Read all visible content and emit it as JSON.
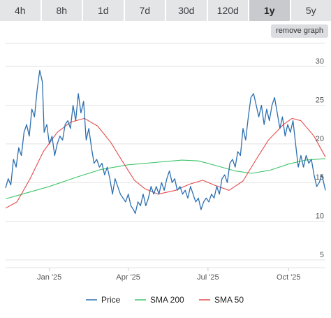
{
  "tabs": [
    {
      "label": "4h",
      "active": false
    },
    {
      "label": "8h",
      "active": false
    },
    {
      "label": "1d",
      "active": false
    },
    {
      "label": "7d",
      "active": false
    },
    {
      "label": "30d",
      "active": false
    },
    {
      "label": "120d",
      "active": false
    },
    {
      "label": "1y",
      "active": true
    },
    {
      "label": "5y",
      "active": false
    }
  ],
  "remove_graph_label": "remove graph",
  "chart_data": {
    "type": "line",
    "title": "",
    "xlabel": "",
    "ylabel": "",
    "ylim": [
      4,
      33
    ],
    "yticks": [
      5,
      10,
      15,
      20,
      25,
      30
    ],
    "xlim": [
      "2024-11-12",
      "2025-11-12"
    ],
    "xticks": [
      {
        "date": "2025-01-01",
        "label": "Jan '25"
      },
      {
        "date": "2025-04-01",
        "label": "Apr '25"
      },
      {
        "date": "2025-07-01",
        "label": "Jul '25"
      },
      {
        "date": "2025-10-01",
        "label": "Oct '25"
      }
    ],
    "grid": true,
    "legend": "bottom",
    "series": [
      {
        "name": "Price",
        "color": "#2c6fb0",
        "points": [
          [
            "2024-11-12",
            14.3
          ],
          [
            "2024-11-15",
            15.5
          ],
          [
            "2024-11-18",
            14.7
          ],
          [
            "2024-11-21",
            18.0
          ],
          [
            "2024-11-24",
            17.0
          ],
          [
            "2024-11-27",
            19.5
          ],
          [
            "2024-11-30",
            18.5
          ],
          [
            "2024-12-03",
            21.5
          ],
          [
            "2024-12-06",
            22.5
          ],
          [
            "2024-12-09",
            21.0
          ],
          [
            "2024-12-12",
            24.5
          ],
          [
            "2024-12-15",
            23.5
          ],
          [
            "2024-12-18",
            27.0
          ],
          [
            "2024-12-21",
            29.5
          ],
          [
            "2024-12-24",
            28.0
          ],
          [
            "2024-12-26",
            21.5
          ],
          [
            "2024-12-29",
            22.5
          ],
          [
            "2025-01-01",
            20.0
          ],
          [
            "2025-01-04",
            21.0
          ],
          [
            "2025-01-07",
            18.5
          ],
          [
            "2025-01-10",
            20.0
          ],
          [
            "2025-01-13",
            21.0
          ],
          [
            "2025-01-16",
            20.5
          ],
          [
            "2025-01-19",
            22.5
          ],
          [
            "2025-01-22",
            23.0
          ],
          [
            "2025-01-25",
            22.0
          ],
          [
            "2025-01-28",
            25.0
          ],
          [
            "2025-01-31",
            23.0
          ],
          [
            "2025-02-03",
            26.5
          ],
          [
            "2025-02-06",
            24.0
          ],
          [
            "2025-02-09",
            25.5
          ],
          [
            "2025-02-12",
            20.5
          ],
          [
            "2025-02-15",
            22.0
          ],
          [
            "2025-02-18",
            19.5
          ],
          [
            "2025-02-21",
            17.5
          ],
          [
            "2025-02-24",
            18.0
          ],
          [
            "2025-02-27",
            17.0
          ],
          [
            "2025-03-02",
            17.5
          ],
          [
            "2025-03-05",
            16.0
          ],
          [
            "2025-03-08",
            17.0
          ],
          [
            "2025-03-11",
            15.5
          ],
          [
            "2025-03-14",
            13.5
          ],
          [
            "2025-03-17",
            15.5
          ],
          [
            "2025-03-20",
            14.5
          ],
          [
            "2025-03-23",
            13.5
          ],
          [
            "2025-03-26",
            13.0
          ],
          [
            "2025-03-29",
            12.5
          ],
          [
            "2025-04-01",
            13.5
          ],
          [
            "2025-04-04",
            12.0
          ],
          [
            "2025-04-07",
            11.5
          ],
          [
            "2025-04-09",
            11.0
          ],
          [
            "2025-04-12",
            12.5
          ],
          [
            "2025-04-15",
            12.0
          ],
          [
            "2025-04-18",
            13.5
          ],
          [
            "2025-04-21",
            12.0
          ],
          [
            "2025-04-24",
            13.0
          ],
          [
            "2025-04-27",
            14.5
          ],
          [
            "2025-04-30",
            13.5
          ],
          [
            "2025-05-03",
            14.5
          ],
          [
            "2025-05-06",
            13.5
          ],
          [
            "2025-05-09",
            15.0
          ],
          [
            "2025-05-12",
            14.0
          ],
          [
            "2025-05-15",
            15.5
          ],
          [
            "2025-05-18",
            16.5
          ],
          [
            "2025-05-21",
            15.0
          ],
          [
            "2025-05-24",
            15.5
          ],
          [
            "2025-05-27",
            14.0
          ],
          [
            "2025-05-30",
            14.5
          ],
          [
            "2025-06-02",
            13.5
          ],
          [
            "2025-06-05",
            14.0
          ],
          [
            "2025-06-08",
            13.0
          ],
          [
            "2025-06-11",
            14.5
          ],
          [
            "2025-06-14",
            13.5
          ],
          [
            "2025-06-17",
            12.5
          ],
          [
            "2025-06-20",
            13.0
          ],
          [
            "2025-06-23",
            11.5
          ],
          [
            "2025-06-26",
            12.5
          ],
          [
            "2025-06-29",
            13.0
          ],
          [
            "2025-07-02",
            12.5
          ],
          [
            "2025-07-05",
            13.5
          ],
          [
            "2025-07-08",
            13.0
          ],
          [
            "2025-07-11",
            14.5
          ],
          [
            "2025-07-14",
            13.5
          ],
          [
            "2025-07-17",
            15.5
          ],
          [
            "2025-07-20",
            16.0
          ],
          [
            "2025-07-23",
            15.0
          ],
          [
            "2025-07-26",
            17.5
          ],
          [
            "2025-07-29",
            18.0
          ],
          [
            "2025-08-01",
            17.0
          ],
          [
            "2025-08-04",
            19.0
          ],
          [
            "2025-08-07",
            18.5
          ],
          [
            "2025-08-10",
            22.0
          ],
          [
            "2025-08-13",
            20.5
          ],
          [
            "2025-08-16",
            23.5
          ],
          [
            "2025-08-19",
            26.0
          ],
          [
            "2025-08-22",
            26.5
          ],
          [
            "2025-08-25",
            25.0
          ],
          [
            "2025-08-28",
            23.5
          ],
          [
            "2025-08-31",
            25.0
          ],
          [
            "2025-09-03",
            22.5
          ],
          [
            "2025-09-06",
            24.5
          ],
          [
            "2025-09-09",
            23.0
          ],
          [
            "2025-09-12",
            25.0
          ],
          [
            "2025-09-15",
            26.0
          ],
          [
            "2025-09-18",
            24.0
          ],
          [
            "2025-09-21",
            22.0
          ],
          [
            "2025-09-24",
            23.5
          ],
          [
            "2025-09-27",
            21.0
          ],
          [
            "2025-09-30",
            22.5
          ],
          [
            "2025-10-03",
            21.5
          ],
          [
            "2025-10-06",
            23.0
          ],
          [
            "2025-10-09",
            20.0
          ],
          [
            "2025-10-12",
            17.0
          ],
          [
            "2025-10-15",
            18.5
          ],
          [
            "2025-10-18",
            17.0
          ],
          [
            "2025-10-21",
            18.5
          ],
          [
            "2025-10-24",
            17.5
          ],
          [
            "2025-10-27",
            18.0
          ],
          [
            "2025-10-30",
            16.0
          ],
          [
            "2025-11-02",
            14.5
          ],
          [
            "2025-11-05",
            15.0
          ],
          [
            "2025-11-08",
            16.0
          ],
          [
            "2025-11-12",
            14.0
          ]
        ]
      },
      {
        "name": "SMA 200",
        "color": "#3ec46a",
        "points": [
          [
            "2024-11-12",
            12.9
          ],
          [
            "2024-12-01",
            13.5
          ],
          [
            "2025-01-01",
            14.5
          ],
          [
            "2025-02-01",
            15.7
          ],
          [
            "2025-03-01",
            16.7
          ],
          [
            "2025-04-01",
            17.3
          ],
          [
            "2025-05-01",
            17.6
          ],
          [
            "2025-06-01",
            17.9
          ],
          [
            "2025-06-20",
            17.8
          ],
          [
            "2025-07-10",
            17.2
          ],
          [
            "2025-08-01",
            16.5
          ],
          [
            "2025-08-20",
            16.2
          ],
          [
            "2025-09-10",
            16.6
          ],
          [
            "2025-10-01",
            17.4
          ],
          [
            "2025-10-20",
            17.9
          ],
          [
            "2025-11-12",
            18.1
          ]
        ]
      },
      {
        "name": "SMA 50",
        "color": "#e64c4c",
        "points": [
          [
            "2024-11-12",
            11.7
          ],
          [
            "2024-11-25",
            12.5
          ],
          [
            "2024-12-10",
            15.5
          ],
          [
            "2024-12-25",
            19.0
          ],
          [
            "2025-01-10",
            21.5
          ],
          [
            "2025-01-25",
            22.8
          ],
          [
            "2025-02-10",
            23.3
          ],
          [
            "2025-02-25",
            22.3
          ],
          [
            "2025-03-12",
            20.2
          ],
          [
            "2025-03-25",
            17.8
          ],
          [
            "2025-04-08",
            15.3
          ],
          [
            "2025-04-20",
            14.2
          ],
          [
            "2025-05-05",
            13.5
          ],
          [
            "2025-05-25",
            14.0
          ],
          [
            "2025-06-10",
            14.8
          ],
          [
            "2025-06-25",
            15.3
          ],
          [
            "2025-07-10",
            14.6
          ],
          [
            "2025-07-25",
            14.0
          ],
          [
            "2025-08-10",
            15.2
          ],
          [
            "2025-08-25",
            18.0
          ],
          [
            "2025-09-08",
            20.5
          ],
          [
            "2025-09-25",
            22.5
          ],
          [
            "2025-10-05",
            23.3
          ],
          [
            "2025-10-15",
            23.0
          ],
          [
            "2025-10-30",
            21.0
          ],
          [
            "2025-11-12",
            18.3
          ]
        ]
      }
    ]
  }
}
